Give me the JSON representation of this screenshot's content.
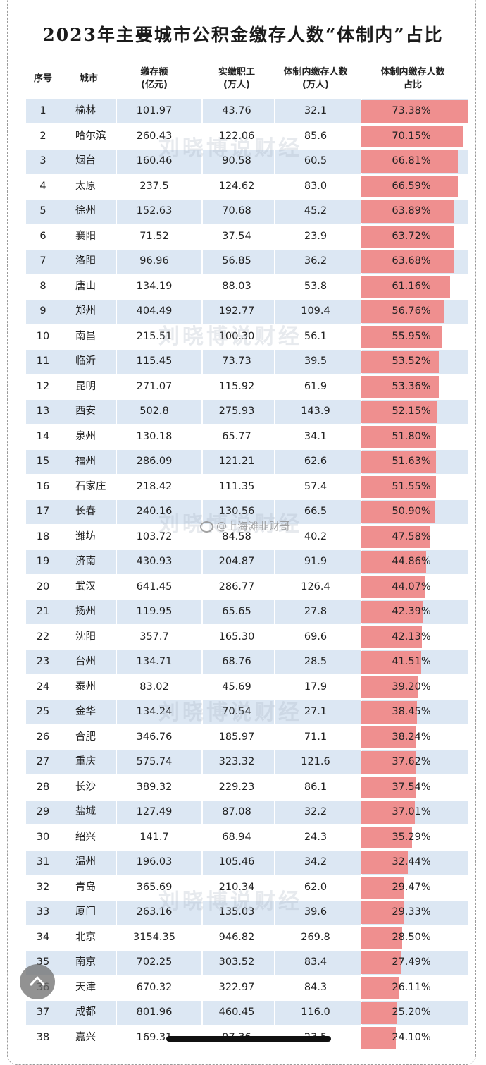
{
  "title": "2023年主要城市公积金缴存人数“体制内”占比",
  "headers": {
    "rank": "序号",
    "city": "城市",
    "deposit": [
      "缴存额",
      "(亿元)"
    ],
    "workers": [
      "实缴职工",
      "(万人)"
    ],
    "system": [
      "体制内缴存人数",
      "(万人)"
    ],
    "ratio": [
      "体制内缴存人数",
      "占比"
    ]
  },
  "watermark": "刘晓博说财经",
  "weibo_label": "@上海滩韭财哥",
  "colors": {
    "stripe": "#dce7f3",
    "bar": "#ef8f8f"
  },
  "rows": [
    {
      "rank": "1",
      "city": "榆林",
      "deposit": "101.97",
      "workers": "43.76",
      "system": "32.1",
      "ratio": "73.38%",
      "pct": 73.38
    },
    {
      "rank": "2",
      "city": "哈尔滨",
      "deposit": "260.43",
      "workers": "122.06",
      "system": "85.6",
      "ratio": "70.15%",
      "pct": 70.15
    },
    {
      "rank": "3",
      "city": "烟台",
      "deposit": "160.46",
      "workers": "90.58",
      "system": "60.5",
      "ratio": "66.81%",
      "pct": 66.81
    },
    {
      "rank": "4",
      "city": "太原",
      "deposit": "237.5",
      "workers": "124.62",
      "system": "83.0",
      "ratio": "66.59%",
      "pct": 66.59
    },
    {
      "rank": "5",
      "city": "徐州",
      "deposit": "152.63",
      "workers": "70.68",
      "system": "45.2",
      "ratio": "63.89%",
      "pct": 63.89
    },
    {
      "rank": "6",
      "city": "襄阳",
      "deposit": "71.52",
      "workers": "37.54",
      "system": "23.9",
      "ratio": "63.72%",
      "pct": 63.72
    },
    {
      "rank": "7",
      "city": "洛阳",
      "deposit": "96.96",
      "workers": "56.85",
      "system": "36.2",
      "ratio": "63.68%",
      "pct": 63.68
    },
    {
      "rank": "8",
      "city": "唐山",
      "deposit": "134.19",
      "workers": "88.03",
      "system": "53.8",
      "ratio": "61.16%",
      "pct": 61.16
    },
    {
      "rank": "9",
      "city": "郑州",
      "deposit": "404.49",
      "workers": "192.77",
      "system": "109.4",
      "ratio": "56.76%",
      "pct": 56.76
    },
    {
      "rank": "10",
      "city": "南昌",
      "deposit": "215.51",
      "workers": "100.30",
      "system": "56.1",
      "ratio": "55.95%",
      "pct": 55.95
    },
    {
      "rank": "11",
      "city": "临沂",
      "deposit": "115.45",
      "workers": "73.73",
      "system": "39.5",
      "ratio": "53.52%",
      "pct": 53.52
    },
    {
      "rank": "12",
      "city": "昆明",
      "deposit": "271.07",
      "workers": "115.92",
      "system": "61.9",
      "ratio": "53.36%",
      "pct": 53.36
    },
    {
      "rank": "13",
      "city": "西安",
      "deposit": "502.8",
      "workers": "275.93",
      "system": "143.9",
      "ratio": "52.15%",
      "pct": 52.15
    },
    {
      "rank": "14",
      "city": "泉州",
      "deposit": "130.18",
      "workers": "65.77",
      "system": "34.1",
      "ratio": "51.80%",
      "pct": 51.8
    },
    {
      "rank": "15",
      "city": "福州",
      "deposit": "286.09",
      "workers": "121.21",
      "system": "62.6",
      "ratio": "51.63%",
      "pct": 51.63
    },
    {
      "rank": "16",
      "city": "石家庄",
      "deposit": "218.42",
      "workers": "111.35",
      "system": "57.4",
      "ratio": "51.55%",
      "pct": 51.55
    },
    {
      "rank": "17",
      "city": "长春",
      "deposit": "240.16",
      "workers": "130.56",
      "system": "66.5",
      "ratio": "50.90%",
      "pct": 50.9
    },
    {
      "rank": "18",
      "city": "潍坊",
      "deposit": "103.72",
      "workers": "84.58",
      "system": "40.2",
      "ratio": "47.58%",
      "pct": 47.58
    },
    {
      "rank": "19",
      "city": "济南",
      "deposit": "430.93",
      "workers": "204.87",
      "system": "91.9",
      "ratio": "44.86%",
      "pct": 44.86
    },
    {
      "rank": "20",
      "city": "武汉",
      "deposit": "641.45",
      "workers": "286.77",
      "system": "126.4",
      "ratio": "44.07%",
      "pct": 44.07
    },
    {
      "rank": "21",
      "city": "扬州",
      "deposit": "119.95",
      "workers": "65.65",
      "system": "27.8",
      "ratio": "42.39%",
      "pct": 42.39
    },
    {
      "rank": "22",
      "city": "沈阳",
      "deposit": "357.7",
      "workers": "165.30",
      "system": "69.6",
      "ratio": "42.13%",
      "pct": 42.13
    },
    {
      "rank": "23",
      "city": "台州",
      "deposit": "134.71",
      "workers": "68.76",
      "system": "28.5",
      "ratio": "41.51%",
      "pct": 41.51
    },
    {
      "rank": "24",
      "city": "泰州",
      "deposit": "83.02",
      "workers": "45.69",
      "system": "17.9",
      "ratio": "39.20%",
      "pct": 39.2
    },
    {
      "rank": "25",
      "city": "金华",
      "deposit": "134.24",
      "workers": "70.54",
      "system": "27.1",
      "ratio": "38.45%",
      "pct": 38.45
    },
    {
      "rank": "26",
      "city": "合肥",
      "deposit": "346.76",
      "workers": "185.97",
      "system": "71.1",
      "ratio": "38.24%",
      "pct": 38.24
    },
    {
      "rank": "27",
      "city": "重庆",
      "deposit": "575.74",
      "workers": "323.32",
      "system": "121.6",
      "ratio": "37.62%",
      "pct": 37.62
    },
    {
      "rank": "28",
      "city": "长沙",
      "deposit": "389.32",
      "workers": "229.23",
      "system": "86.1",
      "ratio": "37.54%",
      "pct": 37.54
    },
    {
      "rank": "29",
      "city": "盐城",
      "deposit": "127.49",
      "workers": "87.08",
      "system": "32.2",
      "ratio": "37.01%",
      "pct": 37.01
    },
    {
      "rank": "30",
      "city": "绍兴",
      "deposit": "141.7",
      "workers": "68.94",
      "system": "24.3",
      "ratio": "35.29%",
      "pct": 35.29
    },
    {
      "rank": "31",
      "city": "温州",
      "deposit": "196.03",
      "workers": "105.46",
      "system": "34.2",
      "ratio": "32.44%",
      "pct": 32.44
    },
    {
      "rank": "32",
      "city": "青岛",
      "deposit": "365.69",
      "workers": "210.34",
      "system": "62.0",
      "ratio": "29.47%",
      "pct": 29.47
    },
    {
      "rank": "33",
      "city": "厦门",
      "deposit": "263.16",
      "workers": "135.03",
      "system": "39.6",
      "ratio": "29.33%",
      "pct": 29.33
    },
    {
      "rank": "34",
      "city": "北京",
      "deposit": "3154.35",
      "workers": "946.82",
      "system": "269.8",
      "ratio": "28.50%",
      "pct": 28.5
    },
    {
      "rank": "35",
      "city": "南京",
      "deposit": "702.25",
      "workers": "303.52",
      "system": "83.4",
      "ratio": "27.49%",
      "pct": 27.49
    },
    {
      "rank": "36",
      "city": "天津",
      "deposit": "670.32",
      "workers": "322.97",
      "system": "84.3",
      "ratio": "26.11%",
      "pct": 26.11
    },
    {
      "rank": "37",
      "city": "成都",
      "deposit": "801.96",
      "workers": "460.45",
      "system": "116.0",
      "ratio": "25.20%",
      "pct": 25.2
    },
    {
      "rank": "38",
      "city": "嘉兴",
      "deposit": "169.31",
      "workers": "97.36",
      "system": "23.5",
      "ratio": "24.10%",
      "pct": 24.1
    }
  ]
}
